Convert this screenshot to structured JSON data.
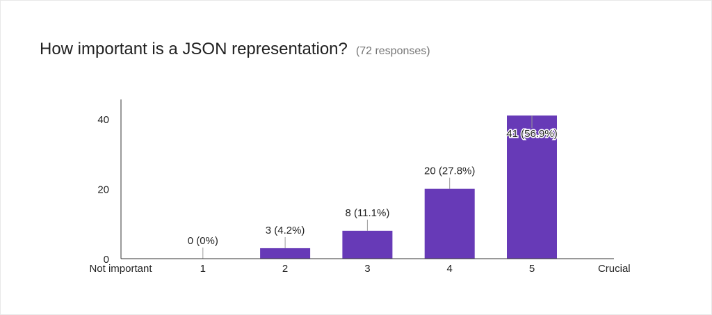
{
  "question": {
    "title": "How important is a JSON representation?",
    "response_count": "(72 responses)"
  },
  "colors": {
    "bar": "#673ab7",
    "axis": "#333333",
    "text": "#222222",
    "leader": "#999999"
  },
  "chart_data": {
    "type": "bar",
    "categories": [
      "1",
      "2",
      "3",
      "4",
      "5"
    ],
    "values": [
      0,
      3,
      8,
      20,
      41
    ],
    "data_labels": [
      "0 (0%)",
      "3 (4.2%)",
      "8 (11.1%)",
      "20 (27.8%)",
      "41 (56.9%)"
    ],
    "x_tick_labels": [
      "Not important",
      "1",
      "2",
      "3",
      "4",
      "5",
      "Crucial"
    ],
    "y_ticks": [
      0,
      20,
      40
    ],
    "ylim": [
      0,
      46
    ],
    "grid": false,
    "legend": "none"
  }
}
